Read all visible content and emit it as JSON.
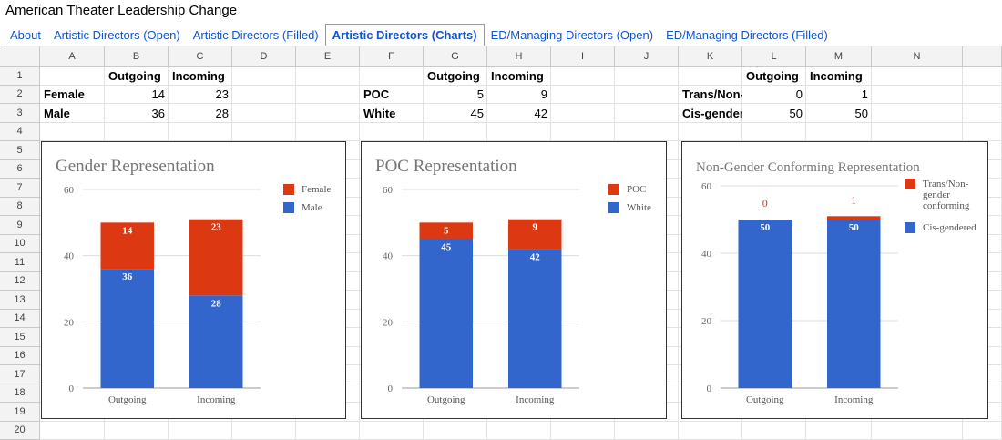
{
  "header": {
    "title": "American Theater Leadership Change"
  },
  "tabs": {
    "items": [
      "About",
      "Artistic Directors (Open)",
      "Artistic Directors (Filled)",
      "Artistic Directors (Charts)",
      "ED/Managing Directors (Open)",
      "ED/Managing Directors (Filled)"
    ],
    "active": 3
  },
  "sheet": {
    "columns": [
      "A",
      "B",
      "C",
      "D",
      "E",
      "F",
      "G",
      "H",
      "I",
      "J",
      "K",
      "L",
      "M",
      "N"
    ],
    "row_numbers": [
      1,
      2,
      3,
      4,
      5,
      6,
      7,
      8,
      9,
      10,
      11,
      12,
      13,
      14,
      15,
      16,
      17,
      18,
      19,
      20
    ],
    "rows": [
      [
        null,
        "Outgoing",
        "Incoming",
        null,
        null,
        null,
        "Outgoing",
        "Incoming",
        null,
        null,
        null,
        "Outgoing",
        "Incoming",
        null
      ],
      [
        "Female",
        14,
        23,
        null,
        null,
        "POC",
        5,
        9,
        null,
        null,
        "Trans/Non-",
        0,
        1,
        null
      ],
      [
        "Male",
        36,
        28,
        null,
        null,
        "White",
        45,
        42,
        null,
        null,
        "Cis-gender",
        50,
        50,
        null
      ]
    ]
  },
  "chart_data": [
    {
      "type": "stacked_bar",
      "title": "Gender Representation",
      "categories": [
        "Outgoing",
        "Incoming"
      ],
      "series": [
        {
          "name": "Female",
          "color": "#dc3912",
          "values": [
            14,
            23
          ]
        },
        {
          "name": "Male",
          "color": "#3366cc",
          "values": [
            36,
            28
          ]
        }
      ],
      "ylim": [
        0,
        60
      ],
      "yticks": [
        0,
        20,
        40,
        60
      ],
      "grid": true,
      "legend": "right"
    },
    {
      "type": "stacked_bar",
      "title": "POC Representation",
      "categories": [
        "Outgoing",
        "Incoming"
      ],
      "series": [
        {
          "name": "POC",
          "color": "#dc3912",
          "values": [
            5,
            9
          ]
        },
        {
          "name": "White",
          "color": "#3366cc",
          "values": [
            45,
            42
          ]
        }
      ],
      "ylim": [
        0,
        60
      ],
      "yticks": [
        0,
        20,
        40,
        60
      ],
      "grid": true,
      "legend": "right"
    },
    {
      "type": "stacked_bar",
      "title": "Non-Gender Conforming Representation",
      "categories": [
        "Outgoing",
        "Incoming"
      ],
      "series": [
        {
          "name": "Trans/Non-gender conforming",
          "color": "#dc3912",
          "values": [
            0,
            1
          ]
        },
        {
          "name": "Cis-gendered",
          "color": "#3366cc",
          "values": [
            50,
            50
          ]
        }
      ],
      "ylim": [
        0,
        60
      ],
      "yticks": [
        0,
        20,
        40,
        60
      ],
      "grid": true,
      "legend": "right"
    }
  ]
}
